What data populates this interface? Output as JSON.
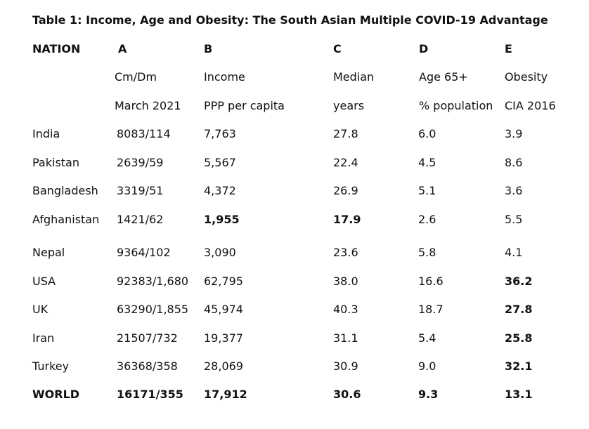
{
  "document": {
    "title": "Table 1: Income, Age and Obesity: The South Asian Multiple COVID-19 Advantage"
  },
  "table": {
    "header": {
      "letters": [
        "NATION",
        "A",
        "B",
        "C",
        "D",
        "E"
      ],
      "line1": [
        "",
        "Cm/Dm",
        "Income",
        "Median",
        "Age 65+",
        "Obesity"
      ],
      "line2": [
        "",
        "March 2021",
        "PPP per capita",
        "years",
        "% population",
        "CIA 2016"
      ]
    },
    "rows": [
      {
        "nation": "India",
        "a": "8083/114",
        "b": "7,763",
        "c": "27.8",
        "d": "6.0",
        "e": "3.9"
      },
      {
        "nation": "Pakistan",
        "a": "2639/59",
        "b": "5,567",
        "c": "22.4",
        "d": "4.5",
        "e": "8.6"
      },
      {
        "nation": "Bangladesh",
        "a": "3319/51",
        "b": "4,372",
        "c": "26.9",
        "d": "5.1",
        "e": "3.6"
      },
      {
        "nation": "Afghanistan",
        "a": "1421/62",
        "b": "1,955",
        "c": "17.9",
        "d": "2.6",
        "e": "5.5"
      },
      {
        "nation": "Nepal",
        "a": "9364/102",
        "b": "3,090",
        "c": "23.6",
        "d": "5.8",
        "e": "4.1"
      },
      {
        "nation": "USA",
        "a": "92383/1,680",
        "b": "62,795",
        "c": "38.0",
        "d": "16.6",
        "e": "36.2"
      },
      {
        "nation": "UK",
        "a": "63290/1,855",
        "b": "45,974",
        "c": "40.3",
        "d": "18.7",
        "e": "27.8"
      },
      {
        "nation": "Iran",
        "a": "21507/732",
        "b": "19,377",
        "c": "31.1",
        "d": "5.4",
        "e": "25.8"
      },
      {
        "nation": "Turkey",
        "a": "36368/358",
        "b": "28,069",
        "c": "30.9",
        "d": "9.0",
        "e": "32.1"
      },
      {
        "nation": "WORLD",
        "a": "16171/355",
        "b": "17,912",
        "c": "30.6",
        "d": "9.3",
        "e": "13.1"
      }
    ]
  }
}
